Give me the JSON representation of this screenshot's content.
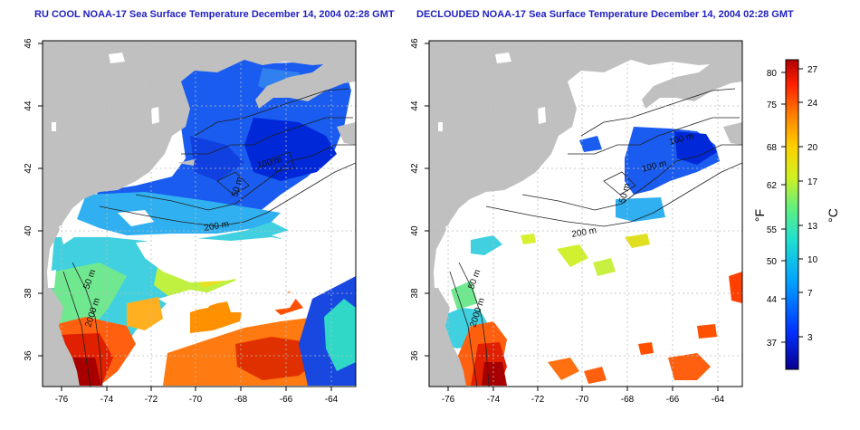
{
  "panels": [
    {
      "title": "RU COOL NOAA-17 Sea Surface Temperature December 14, 2004 02:28 GMT",
      "contour_labels": [
        "100 m",
        "50 m",
        "200 m",
        "50 m",
        "2000 m"
      ]
    },
    {
      "title": "DECLOUDED NOAA-17 Sea Surface Temperature December 14, 2004 02:28 GMT",
      "contour_labels": [
        "100 m",
        "100 m",
        "50 m",
        "200 m",
        "50 m",
        "2000 m"
      ]
    }
  ],
  "axes": {
    "lon_ticks": [
      "-76",
      "-74",
      "-72",
      "-70",
      "-68",
      "-66",
      "-64"
    ],
    "lat_ticks": [
      "46",
      "44",
      "42",
      "40",
      "38",
      "36"
    ]
  },
  "colorbar": {
    "f_label": "°F",
    "c_label": "°C",
    "f_ticks": [
      "80",
      "75",
      "68",
      "62",
      "55",
      "50",
      "44",
      "37"
    ],
    "c_ticks": [
      "27",
      "24",
      "20",
      "17",
      "13",
      "10",
      "7",
      "3"
    ],
    "colors": [
      "#08008f",
      "#0030ff",
      "#00a0ff",
      "#20e0d0",
      "#60f080",
      "#d0f020",
      "#ffd000",
      "#ff8000",
      "#ff2000",
      "#b00000"
    ]
  },
  "colors": {
    "land": "#c0c0c0",
    "ocean": "#ffffff",
    "title": "#1f1fbf",
    "grid": "#bbbbbb"
  }
}
